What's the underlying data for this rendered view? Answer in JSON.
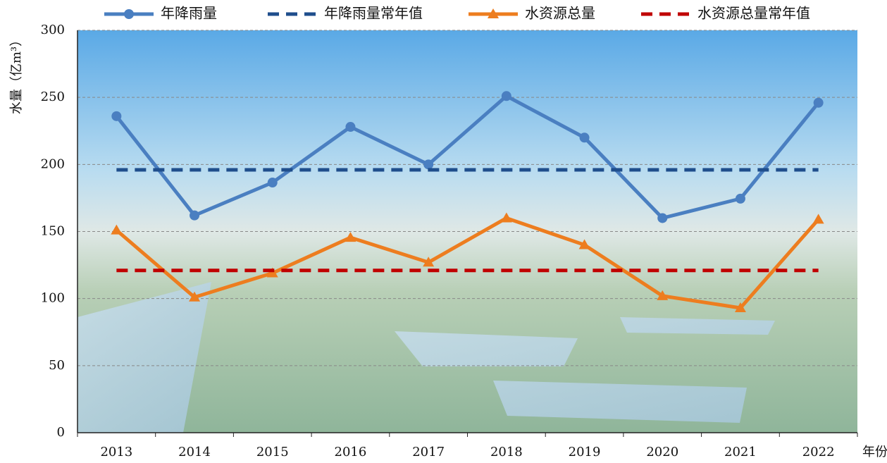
{
  "chart_data": {
    "type": "line",
    "y_label": "水量（亿m³）",
    "x_label": "年份",
    "categories": [
      "2013",
      "2014",
      "2015",
      "2016",
      "2017",
      "2018",
      "2019",
      "2020",
      "2021",
      "2022"
    ],
    "series": [
      {
        "name": "年降雨量",
        "color": "#4a7fc1",
        "marker": "circle",
        "dashed": false,
        "values": [
          236,
          162,
          186.5,
          228,
          200,
          251,
          220,
          160,
          174.5,
          246
        ]
      },
      {
        "name": "年降雨量常年值",
        "color": "#1f4e8c",
        "marker": "none",
        "dashed": true,
        "values": [
          196,
          196,
          196,
          196,
          196,
          196,
          196,
          196,
          196,
          196
        ]
      },
      {
        "name": "水资源总量",
        "color": "#ed7d1f",
        "marker": "triangle",
        "dashed": false,
        "values": [
          151,
          101,
          119,
          145.5,
          127,
          160,
          140,
          102,
          93,
          159
        ]
      },
      {
        "name": "水资源总量常年值",
        "color": "#c00000",
        "marker": "none",
        "dashed": true,
        "values": [
          121,
          121,
          121,
          121,
          121,
          121,
          121,
          121,
          121,
          121
        ]
      }
    ],
    "ylim": [
      0,
      300
    ],
    "yticks": [
      0,
      50,
      100,
      150,
      200,
      250,
      300
    ],
    "grid": true
  }
}
